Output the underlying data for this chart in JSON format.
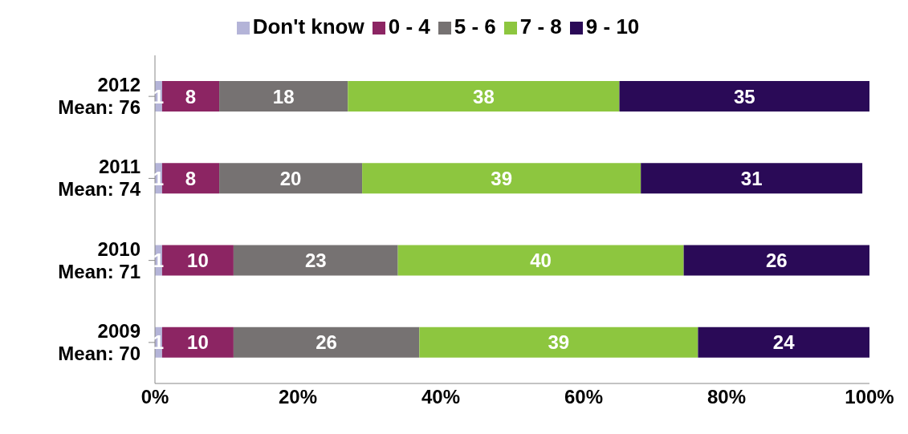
{
  "chart_data": {
    "type": "bar",
    "orientation": "horizontal",
    "stacked": true,
    "categories": [
      "2012\nMean: 76",
      "2011\nMean: 74",
      "2010\nMean: 71",
      "2009\nMean: 70"
    ],
    "series": [
      {
        "name": "Don't know",
        "color": "#b4b4d8",
        "values": [
          1,
          1,
          1,
          1
        ]
      },
      {
        "name": "0 - 4",
        "color": "#8c2563",
        "values": [
          8,
          8,
          10,
          10
        ]
      },
      {
        "name": "5 - 6",
        "color": "#767272",
        "values": [
          18,
          20,
          23,
          26
        ]
      },
      {
        "name": "7 - 8",
        "color": "#8dc63f",
        "values": [
          38,
          39,
          40,
          39
        ]
      },
      {
        "name": "9 - 10",
        "color": "#2a0a57",
        "values": [
          35,
          31,
          26,
          24
        ]
      }
    ],
    "xlim": [
      0,
      100
    ],
    "xticks": [
      {
        "value": 0,
        "label": "0%"
      },
      {
        "value": 20,
        "label": "20%"
      },
      {
        "value": 40,
        "label": "40%"
      },
      {
        "value": 60,
        "label": "60%"
      },
      {
        "value": 80,
        "label": "80%"
      },
      {
        "value": 100,
        "label": "100%"
      }
    ],
    "data_labels": true,
    "legend": "top",
    "grid": false
  }
}
